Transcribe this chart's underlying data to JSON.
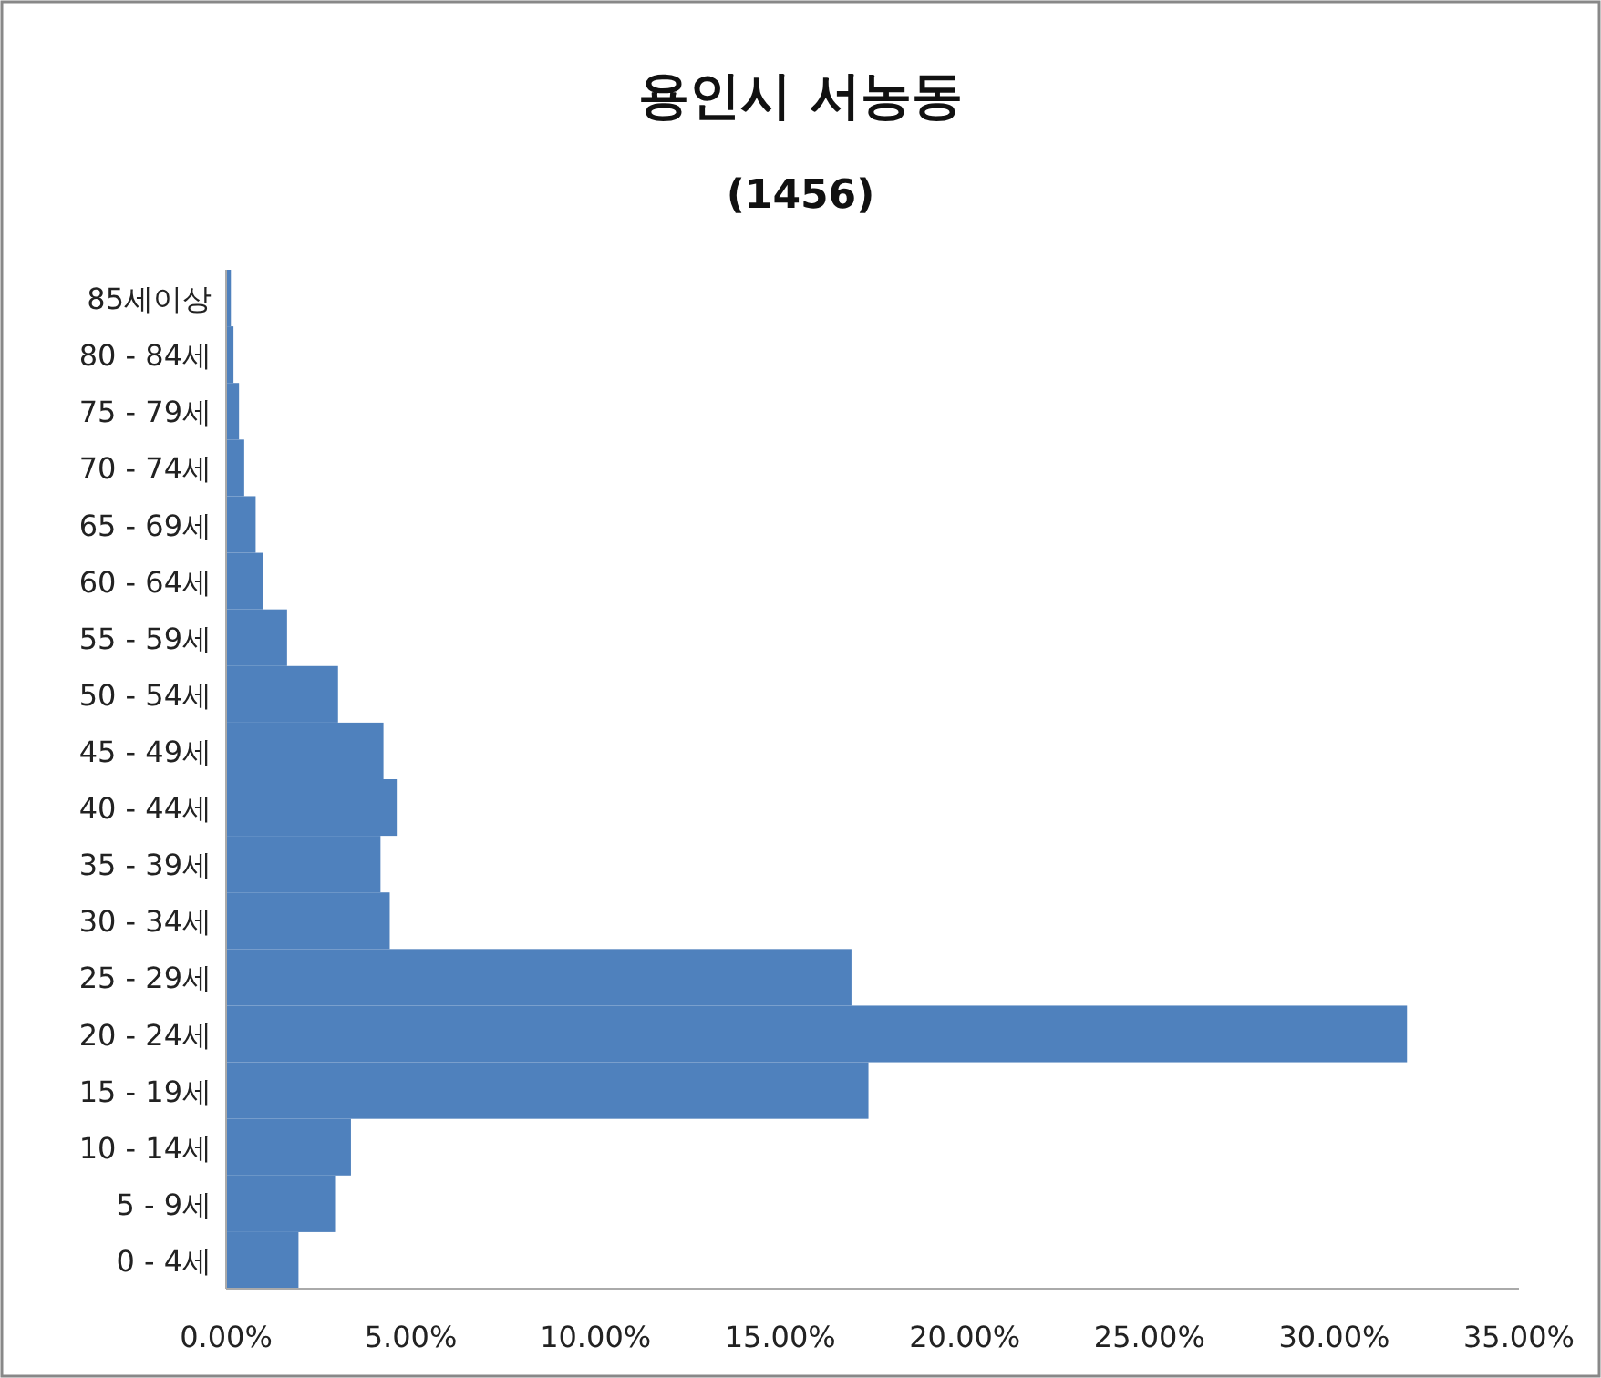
{
  "chart_data": {
    "type": "bar",
    "orientation": "horizontal",
    "title": "용인시 서농동",
    "subtitle": "(1456)",
    "categories": [
      "85세이상",
      "80 - 84세",
      "75 - 79세",
      "70 - 74세",
      "65 - 69세",
      "60 - 64세",
      "55 - 59세",
      "50 - 54세",
      "45 - 49세",
      "40 - 44세",
      "35 - 39세",
      "30 - 34세",
      "25 - 29세",
      "20 - 24세",
      "15 - 19세",
      "10 - 14세",
      "5 - 9세",
      "0 - 4세"
    ],
    "values": [
      0.13,
      0.2,
      0.35,
      0.49,
      0.8,
      0.99,
      1.65,
      3.03,
      4.26,
      4.62,
      4.18,
      4.43,
      16.93,
      31.97,
      17.39,
      3.38,
      2.95,
      1.96
    ],
    "color": "#4f81bd",
    "xlim": [
      0,
      35
    ],
    "xticks": [
      {
        "value": 0,
        "label": "0.00%"
      },
      {
        "value": 5,
        "label": "5.00%"
      },
      {
        "value": 10,
        "label": "10.00%"
      },
      {
        "value": 15,
        "label": "15.00%"
      },
      {
        "value": 20,
        "label": "20.00%"
      },
      {
        "value": 25,
        "label": "25.00%"
      },
      {
        "value": 30,
        "label": "30.00%"
      },
      {
        "value": 35,
        "label": "35.00%"
      }
    ],
    "grid": false
  }
}
